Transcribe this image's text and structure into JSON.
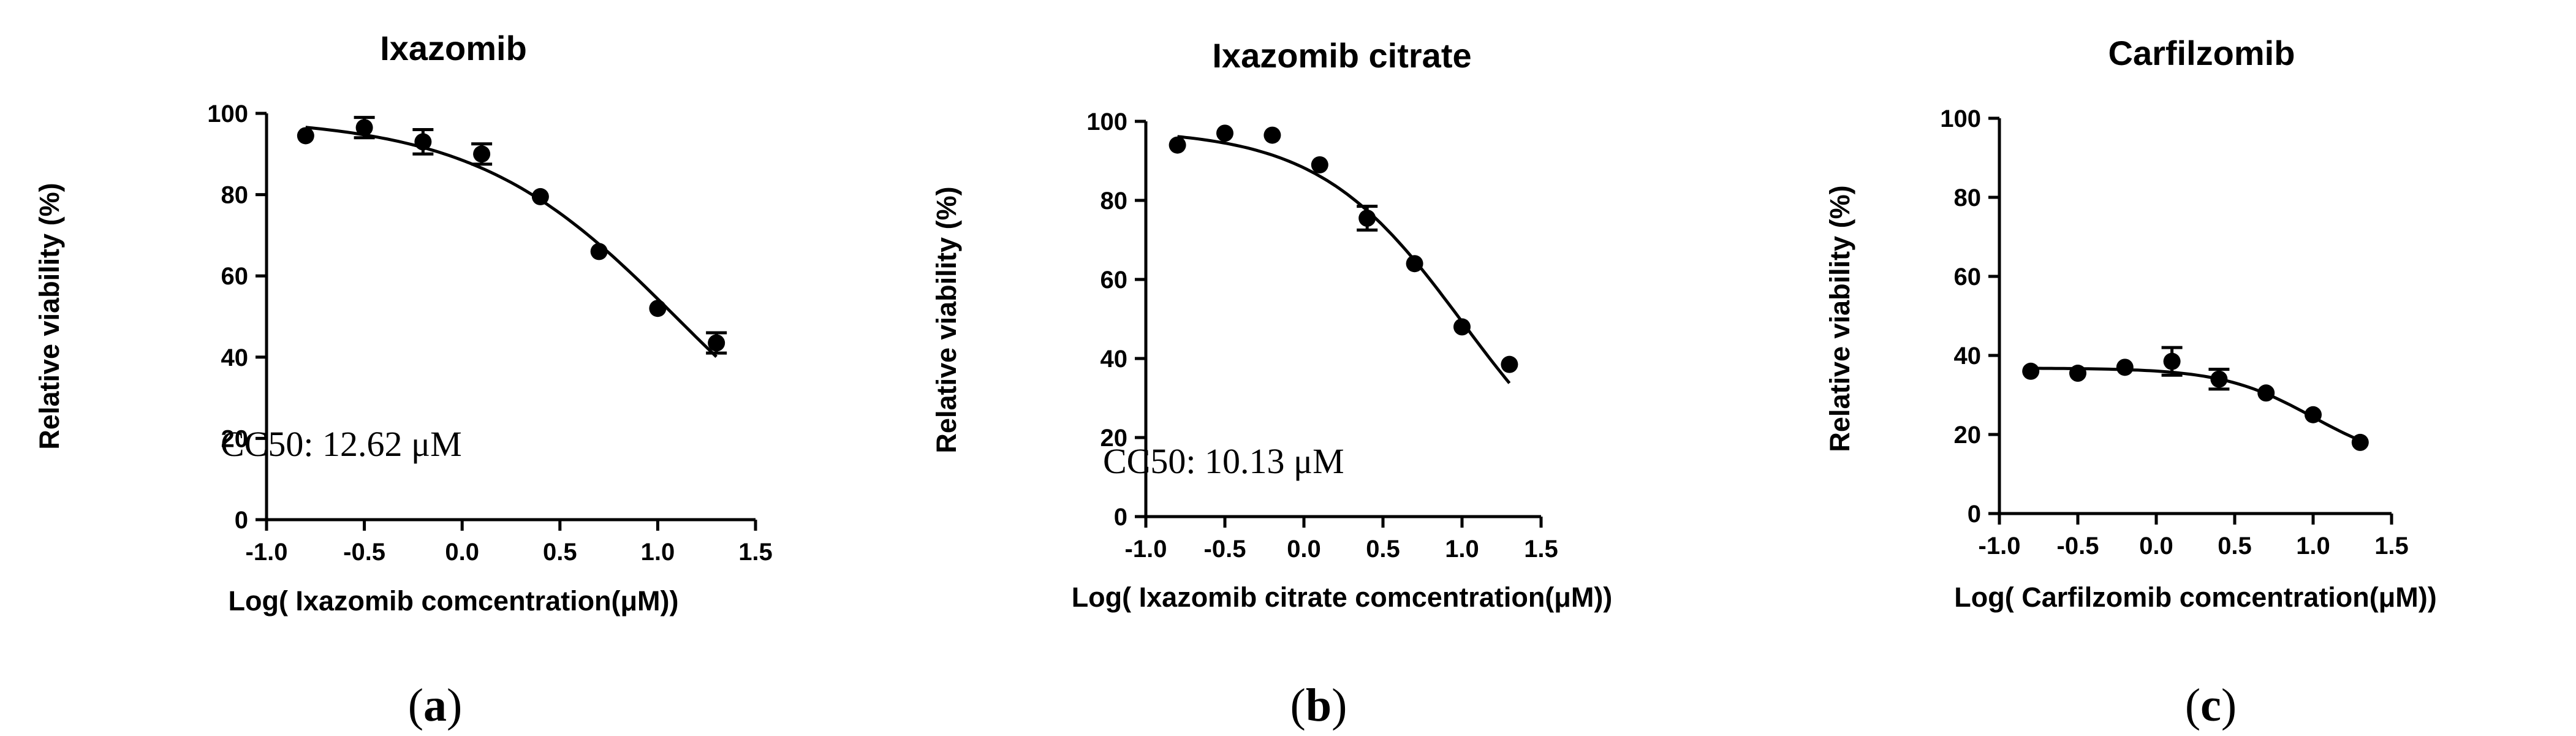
{
  "chart_data": [
    {
      "type": "line",
      "title": "Ixazomib",
      "xlabel": "Log( Ixazomib comcentration(μM))",
      "ylabel": "Relative viability (%)",
      "xlim": [
        -1.0,
        1.5
      ],
      "ylim": [
        0,
        100
      ],
      "xticks": [
        "-1.0",
        "-0.5",
        "0.0",
        "0.5",
        "1.0",
        "1.5"
      ],
      "yticks": [
        "0",
        "20",
        "40",
        "60",
        "80",
        "100"
      ],
      "annotation": "CC50: 12.62 μM",
      "caption_letter": "a",
      "points": [
        {
          "x": -0.8,
          "y": 94.5,
          "err": 0
        },
        {
          "x": -0.5,
          "y": 96.5,
          "err": 2.5
        },
        {
          "x": -0.2,
          "y": 93.0,
          "err": 3.0
        },
        {
          "x": 0.1,
          "y": 90.0,
          "err": 2.5
        },
        {
          "x": 0.4,
          "y": 79.5,
          "err": 0
        },
        {
          "x": 0.7,
          "y": 66.0,
          "err": 0
        },
        {
          "x": 1.0,
          "y": 52.0,
          "err": 0
        },
        {
          "x": 1.3,
          "y": 43.5,
          "err": 2.5
        }
      ],
      "fit": {
        "top": 99,
        "bottom": 0,
        "logEC50": 1.101,
        "hill": -0.84,
        "x_start": -0.8,
        "x_end": 1.3
      }
    },
    {
      "type": "line",
      "title": "Ixazomib citrate",
      "xlabel": "Log( Ixazomib citrate comcentration(μM))",
      "ylabel": "Relative viability (%)",
      "xlim": [
        -1.0,
        1.5
      ],
      "ylim": [
        0,
        100
      ],
      "xticks": [
        "-1.0",
        "-0.5",
        "0.0",
        "0.5",
        "1.0",
        "1.5"
      ],
      "yticks": [
        "0",
        "20",
        "40",
        "60",
        "80",
        "100"
      ],
      "annotation": "CC50: 10.13 μM",
      "caption_letter": "b",
      "points": [
        {
          "x": -0.8,
          "y": 94.0,
          "err": 0
        },
        {
          "x": -0.5,
          "y": 97.0,
          "err": 0
        },
        {
          "x": -0.2,
          "y": 96.5,
          "err": 0
        },
        {
          "x": 0.1,
          "y": 89.0,
          "err": 0
        },
        {
          "x": 0.4,
          "y": 75.5,
          "err": 3.0
        },
        {
          "x": 0.7,
          "y": 64.0,
          "err": 0
        },
        {
          "x": 1.0,
          "y": 48.0,
          "err": 0
        },
        {
          "x": 1.3,
          "y": 38.5,
          "err": 0
        }
      ],
      "fit": {
        "top": 98,
        "bottom": 0,
        "logEC50": 1.006,
        "hill": -0.95,
        "x_start": -0.8,
        "x_end": 1.3
      }
    },
    {
      "type": "line",
      "title": "Carfilzomib",
      "xlabel": "Log( Carfilzomib comcentration(μM))",
      "ylabel": "Relative viability (%)",
      "xlim": [
        -1.0,
        1.5
      ],
      "ylim": [
        0,
        100
      ],
      "xticks": [
        "-1.0",
        "-0.5",
        "0.0",
        "0.5",
        "1.0",
        "1.5"
      ],
      "yticks": [
        "0",
        "20",
        "40",
        "60",
        "80",
        "100"
      ],
      "annotation": "",
      "caption_letter": "c",
      "points": [
        {
          "x": -0.8,
          "y": 36.0,
          "err": 0
        },
        {
          "x": -0.5,
          "y": 35.5,
          "err": 0
        },
        {
          "x": -0.2,
          "y": 37.0,
          "err": 0
        },
        {
          "x": 0.1,
          "y": 38.5,
          "err": 3.5
        },
        {
          "x": 0.4,
          "y": 34.0,
          "err": 2.5
        },
        {
          "x": 0.7,
          "y": 30.5,
          "err": 0
        },
        {
          "x": 1.0,
          "y": 25.0,
          "err": 0
        },
        {
          "x": 1.3,
          "y": 18.0,
          "err": 0
        }
      ],
      "fit": {
        "top": 36.8,
        "bottom": 12,
        "logEC50": 1.0,
        "hill": -1.5,
        "x_start": -0.8,
        "x_end": 1.3
      }
    }
  ]
}
